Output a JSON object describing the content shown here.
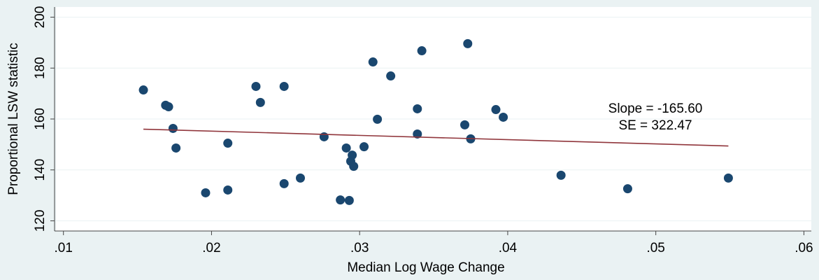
{
  "chart_data": {
    "type": "scatter",
    "xlabel": "Median Log Wage Change",
    "ylabel": "Proportional LSW statistic",
    "annotations": [
      "Slope = -165.60",
      "SE = 322.47"
    ],
    "xlim": [
      0.0094,
      0.0605
    ],
    "ylim": [
      116,
      204
    ],
    "xticks": [
      {
        "value": 0.01,
        "label": ".01"
      },
      {
        "value": 0.02,
        "label": ".02"
      },
      {
        "value": 0.03,
        "label": ".03"
      },
      {
        "value": 0.04,
        "label": ".04"
      },
      {
        "value": 0.05,
        "label": ".05"
      },
      {
        "value": 0.06,
        "label": ".06"
      }
    ],
    "yticks": [
      120,
      140,
      160,
      180,
      200
    ],
    "grid": true,
    "series": [
      {
        "type": "scatter",
        "color": "#1a476f",
        "x": [
          0.0154,
          0.0169,
          0.0171,
          0.0174,
          0.0176,
          0.0196,
          0.0211,
          0.0211,
          0.023,
          0.0233,
          0.0249,
          0.0249,
          0.026,
          0.0276,
          0.0287,
          0.0291,
          0.0293,
          0.0294,
          0.0295,
          0.0296,
          0.0303,
          0.0309,
          0.0312,
          0.0321,
          0.0339,
          0.0339,
          0.0342,
          0.0371,
          0.0373,
          0.0375,
          0.0392,
          0.0397,
          0.0436,
          0.0481,
          0.0549
        ],
        "values": [
          171.4,
          165.4,
          164.8,
          156.3,
          148.6,
          131.0,
          150.5,
          132.1,
          172.8,
          166.5,
          172.8,
          134.6,
          136.8,
          153.0,
          128.2,
          148.6,
          128.0,
          143.4,
          145.8,
          141.4,
          149.1,
          182.4,
          159.9,
          176.9,
          154.1,
          164.0,
          186.8,
          157.7,
          189.6,
          152.2,
          163.7,
          160.7,
          137.9,
          132.6,
          136.8
        ]
      },
      {
        "type": "line",
        "color": "#90353b",
        "x": [
          0.0154,
          0.0549
        ],
        "values": [
          156.0,
          149.4
        ]
      }
    ]
  }
}
